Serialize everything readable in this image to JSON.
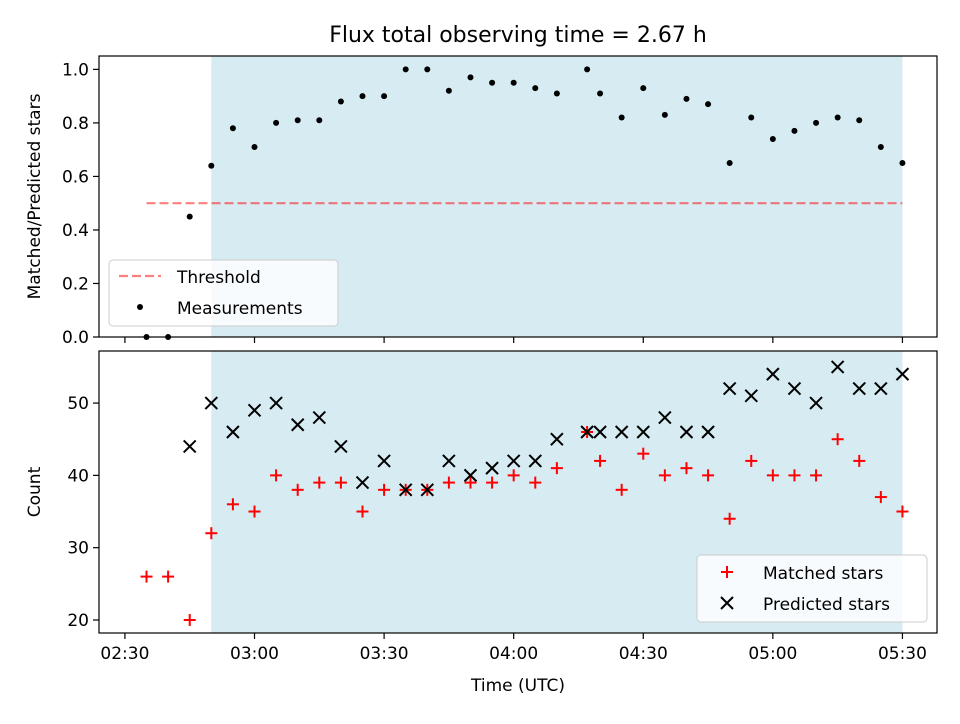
{
  "title": "Flux total observing time = 2.67 h",
  "colors": {
    "shade": "#add8e6",
    "threshold": "#ff0000",
    "measurement": "#000000",
    "matched": "#ff0000",
    "predicted": "#000000"
  },
  "chart_data": [
    {
      "type": "scatter",
      "ylabel": "Matched/Predicted stars",
      "ylim": [
        0.0,
        1.05
      ],
      "yticks": [
        "0.0",
        "0.2",
        "0.4",
        "0.6",
        "0.8",
        "1.0"
      ],
      "shaded_span": [
        "02:50",
        "05:30"
      ],
      "threshold": {
        "name": "Threshold",
        "value": 0.5,
        "x": [
          "02:35",
          "05:30"
        ]
      },
      "legend": {
        "position": "lower-left",
        "entries": [
          "Threshold",
          "Measurements"
        ]
      },
      "series": [
        {
          "name": "Measurements",
          "x": [
            "02:35",
            "02:40",
            "02:45",
            "02:50",
            "02:55",
            "03:00",
            "03:05",
            "03:10",
            "03:15",
            "03:20",
            "03:25",
            "03:30",
            "03:35",
            "03:40",
            "03:45",
            "03:50",
            "03:55",
            "04:00",
            "04:05",
            "04:10",
            "04:17",
            "04:20",
            "04:25",
            "04:30",
            "04:35",
            "04:40",
            "04:45",
            "04:50",
            "04:55",
            "05:00",
            "05:05",
            "05:10",
            "05:15",
            "05:20",
            "05:25",
            "05:30"
          ],
          "y": [
            0.0,
            0.0,
            0.45,
            0.64,
            0.78,
            0.71,
            0.8,
            0.81,
            0.81,
            0.88,
            0.9,
            0.9,
            1.0,
            1.0,
            0.92,
            0.97,
            0.95,
            0.95,
            0.93,
            0.91,
            1.0,
            0.91,
            0.82,
            0.93,
            0.83,
            0.89,
            0.87,
            0.65,
            0.82,
            0.74,
            0.77,
            0.8,
            0.82,
            0.81,
            0.71,
            0.65
          ]
        }
      ]
    },
    {
      "type": "scatter",
      "xlabel": "Time (UTC)",
      "ylabel": "Count",
      "ylim": [
        18.2,
        57.2
      ],
      "yticks": [
        "20",
        "30",
        "40",
        "50"
      ],
      "xticks": [
        "02:30",
        "03:00",
        "03:30",
        "04:00",
        "04:30",
        "05:00",
        "05:30"
      ],
      "shaded_span": [
        "02:50",
        "05:30"
      ],
      "legend": {
        "position": "lower-right",
        "entries": [
          "Matched stars",
          "Predicted stars"
        ]
      },
      "series": [
        {
          "name": "Matched stars",
          "x": [
            "02:35",
            "02:40",
            "02:45",
            "02:50",
            "02:55",
            "03:00",
            "03:05",
            "03:10",
            "03:15",
            "03:20",
            "03:25",
            "03:30",
            "03:35",
            "03:40",
            "03:45",
            "03:50",
            "03:55",
            "04:00",
            "04:05",
            "04:10",
            "04:17",
            "04:20",
            "04:25",
            "04:30",
            "04:35",
            "04:40",
            "04:45",
            "04:50",
            "04:55",
            "05:00",
            "05:05",
            "05:10",
            "05:15",
            "05:20",
            "05:25",
            "05:30"
          ],
          "y": [
            26,
            26,
            20,
            32,
            36,
            35,
            40,
            38,
            39,
            39,
            35,
            38,
            38,
            38,
            39,
            39,
            39,
            40,
            39,
            41,
            46,
            42,
            38,
            43,
            40,
            41,
            40,
            34,
            42,
            40,
            40,
            40,
            45,
            42,
            37,
            35
          ]
        },
        {
          "name": "Predicted stars",
          "x": [
            "02:45",
            "02:50",
            "02:55",
            "03:00",
            "03:05",
            "03:10",
            "03:15",
            "03:20",
            "03:25",
            "03:30",
            "03:35",
            "03:40",
            "03:45",
            "03:50",
            "03:55",
            "04:00",
            "04:05",
            "04:10",
            "04:17",
            "04:20",
            "04:25",
            "04:30",
            "04:35",
            "04:40",
            "04:45",
            "04:50",
            "04:55",
            "05:00",
            "05:05",
            "05:10",
            "05:15",
            "05:20",
            "05:25",
            "05:30"
          ],
          "y": [
            44,
            50,
            46,
            49,
            50,
            47,
            48,
            44,
            39,
            42,
            38,
            38,
            42,
            40,
            41,
            42,
            42,
            45,
            46,
            46,
            46,
            46,
            48,
            46,
            46,
            52,
            51,
            54,
            52,
            50,
            55,
            52,
            52,
            54
          ]
        }
      ]
    }
  ]
}
